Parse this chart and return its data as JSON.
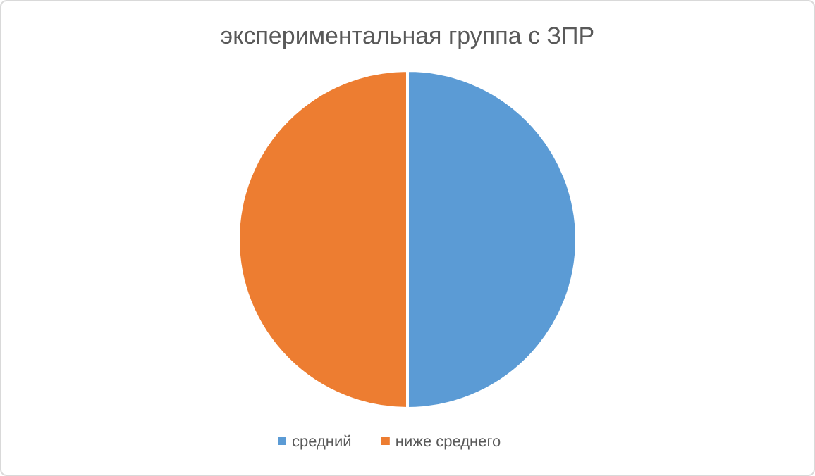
{
  "chart_data": {
    "type": "pie",
    "title": "экспериментальная группа с ЗПР",
    "categories": [
      "средний",
      "ниже среднего"
    ],
    "values": [
      50,
      50
    ],
    "colors": [
      "#5b9bd5",
      "#ed7d31"
    ],
    "legend": "bottom"
  }
}
